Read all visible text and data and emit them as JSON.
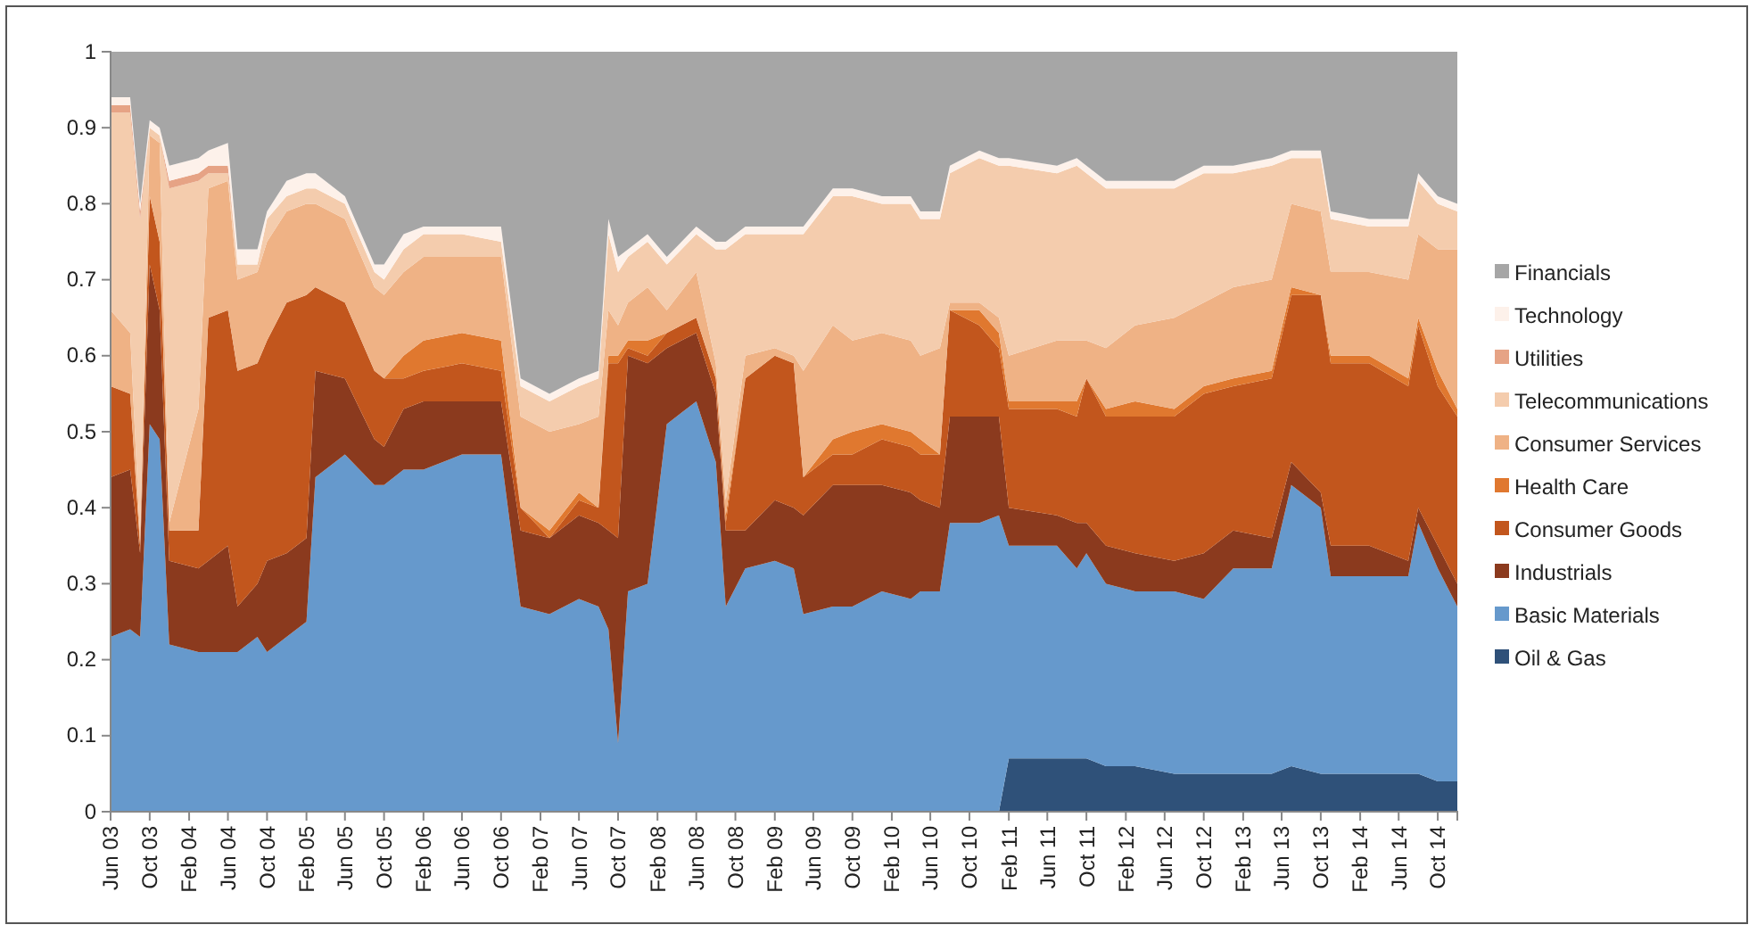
{
  "chart_data": {
    "type": "area",
    "stacked": true,
    "legend": "right",
    "grid": false,
    "x": [
      "2003-06",
      "2003-08",
      "2003-09",
      "2003-10",
      "2003-11",
      "2003-12",
      "2004-03",
      "2004-04",
      "2004-06",
      "2004-07",
      "2004-09",
      "2004-10",
      "2004-12",
      "2005-02",
      "2005-03",
      "2005-06",
      "2005-09",
      "2005-10",
      "2005-12",
      "2006-02",
      "2006-06",
      "2006-10",
      "2006-12",
      "2007-03",
      "2007-06",
      "2007-08",
      "2007-09",
      "2007-10",
      "2007-11",
      "2008-01",
      "2008-03",
      "2008-06",
      "2008-08",
      "2008-09",
      "2008-11",
      "2009-02",
      "2009-04",
      "2009-05",
      "2009-08",
      "2009-10",
      "2010-01",
      "2010-04",
      "2010-05",
      "2010-07",
      "2010-08",
      "2010-11",
      "2011-01",
      "2011-02",
      "2011-07",
      "2011-09",
      "2011-10",
      "2011-12",
      "2012-03",
      "2012-07",
      "2012-10",
      "2013-01",
      "2013-05",
      "2013-07",
      "2013-10",
      "2013-11",
      "2014-03",
      "2014-07",
      "2014-08",
      "2014-10",
      "2014-12"
    ],
    "xlim": [
      "2003-06",
      "2014-12"
    ],
    "xticks": [
      {
        "value": "2003-06",
        "label": "Jun 03"
      },
      {
        "value": "2003-10",
        "label": "Oct 03"
      },
      {
        "value": "2004-02",
        "label": "Feb 04"
      },
      {
        "value": "2004-06",
        "label": "Jun 04"
      },
      {
        "value": "2004-10",
        "label": "Oct 04"
      },
      {
        "value": "2005-02",
        "label": "Feb 05"
      },
      {
        "value": "2005-06",
        "label": "Jun 05"
      },
      {
        "value": "2005-10",
        "label": "Oct 05"
      },
      {
        "value": "2006-02",
        "label": "Feb 06"
      },
      {
        "value": "2006-06",
        "label": "Jun 06"
      },
      {
        "value": "2006-10",
        "label": "Oct 06"
      },
      {
        "value": "2007-02",
        "label": "Feb 07"
      },
      {
        "value": "2007-06",
        "label": "Jun 07"
      },
      {
        "value": "2007-10",
        "label": "Oct 07"
      },
      {
        "value": "2008-02",
        "label": "Feb 08"
      },
      {
        "value": "2008-06",
        "label": "Jun 08"
      },
      {
        "value": "2008-10",
        "label": "Oct 08"
      },
      {
        "value": "2009-02",
        "label": "Feb 09"
      },
      {
        "value": "2009-06",
        "label": "Jun 09"
      },
      {
        "value": "2009-10",
        "label": "Oct 09"
      },
      {
        "value": "2010-02",
        "label": "Feb 10"
      },
      {
        "value": "2010-06",
        "label": "Jun 10"
      },
      {
        "value": "2010-10",
        "label": "Oct 10"
      },
      {
        "value": "2011-02",
        "label": "Feb 11"
      },
      {
        "value": "2011-06",
        "label": "Jun 11"
      },
      {
        "value": "2011-10",
        "label": "Oct 11"
      },
      {
        "value": "2012-02",
        "label": "Feb 12"
      },
      {
        "value": "2012-06",
        "label": "Jun 12"
      },
      {
        "value": "2012-10",
        "label": "Oct 12"
      },
      {
        "value": "2013-02",
        "label": "Feb 13"
      },
      {
        "value": "2013-06",
        "label": "Jun 13"
      },
      {
        "value": "2013-10",
        "label": "Oct 13"
      },
      {
        "value": "2014-02",
        "label": "Feb 14"
      },
      {
        "value": "2014-06",
        "label": "Jun 14"
      },
      {
        "value": "2014-10",
        "label": "Oct 14"
      }
    ],
    "ylim": [
      0,
      1
    ],
    "yticks": [
      0,
      0.1,
      0.2,
      0.3,
      0.4,
      0.5,
      0.6,
      0.7,
      0.8,
      0.9,
      1
    ],
    "series": [
      {
        "name": "Oil & Gas",
        "color": "#2f5179",
        "values": [
          0,
          0,
          0,
          0,
          0,
          0,
          0,
          0,
          0,
          0,
          0,
          0,
          0,
          0,
          0,
          0,
          0,
          0,
          0,
          0,
          0,
          0,
          0,
          0,
          0,
          0,
          0,
          0,
          0,
          0,
          0,
          0,
          0,
          0,
          0,
          0,
          0,
          0,
          0,
          0,
          0,
          0,
          0,
          0,
          0,
          0,
          0,
          0.07,
          0.07,
          0.07,
          0.07,
          0.06,
          0.06,
          0.05,
          0.05,
          0.05,
          0.05,
          0.06,
          0.05,
          0.05,
          0.05,
          0.05,
          0.05,
          0.04,
          0.04
        ]
      },
      {
        "name": "Basic Materials",
        "color": "#6699cc",
        "values": [
          0.23,
          0.24,
          0.23,
          0.51,
          0.49,
          0.22,
          0.21,
          0.21,
          0.21,
          0.21,
          0.23,
          0.21,
          0.23,
          0.25,
          0.44,
          0.47,
          0.43,
          0.43,
          0.45,
          0.45,
          0.47,
          0.47,
          0.27,
          0.26,
          0.28,
          0.27,
          0.24,
          0.09,
          0.29,
          0.3,
          0.51,
          0.54,
          0.46,
          0.27,
          0.32,
          0.33,
          0.32,
          0.26,
          0.27,
          0.27,
          0.29,
          0.28,
          0.29,
          0.29,
          0.38,
          0.38,
          0.39,
          0.28,
          0.28,
          0.25,
          0.27,
          0.24,
          0.23,
          0.24,
          0.23,
          0.27,
          0.27,
          0.37,
          0.35,
          0.26,
          0.26,
          0.26,
          0.33,
          0.28,
          0.23
        ]
      },
      {
        "name": "Industrials",
        "color": "#8b3a1e",
        "values": [
          0.21,
          0.21,
          0.11,
          0.21,
          0.17,
          0.11,
          0.11,
          0.12,
          0.14,
          0.06,
          0.07,
          0.12,
          0.11,
          0.11,
          0.14,
          0.1,
          0.06,
          0.05,
          0.08,
          0.09,
          0.07,
          0.07,
          0.1,
          0.1,
          0.11,
          0.11,
          0.13,
          0.27,
          0.31,
          0.29,
          0.1,
          0.09,
          0.09,
          0.1,
          0.05,
          0.08,
          0.08,
          0.13,
          0.16,
          0.16,
          0.14,
          0.14,
          0.12,
          0.11,
          0.14,
          0.14,
          0.13,
          0.05,
          0.04,
          0.06,
          0.04,
          0.05,
          0.05,
          0.04,
          0.06,
          0.05,
          0.04,
          0.03,
          0.02,
          0.04,
          0.04,
          0.02,
          0.02,
          0.03,
          0.03
        ]
      },
      {
        "name": "Consumer Goods",
        "color": "#c2561d",
        "values": [
          0.12,
          0.1,
          0.01,
          0.09,
          0.09,
          0.04,
          0.05,
          0.32,
          0.31,
          0.31,
          0.29,
          0.29,
          0.33,
          0.32,
          0.11,
          0.1,
          0.09,
          0.09,
          0.04,
          0.04,
          0.05,
          0.04,
          0.03,
          0,
          0.02,
          0.02,
          0.22,
          0.23,
          0.01,
          0.01,
          0.02,
          0.02,
          0.02,
          0.01,
          0.2,
          0.19,
          0.19,
          0.05,
          0.04,
          0.04,
          0.06,
          0.06,
          0.06,
          0.07,
          0.14,
          0.12,
          0.09,
          0.13,
          0.14,
          0.14,
          0.19,
          0.17,
          0.18,
          0.19,
          0.21,
          0.19,
          0.21,
          0.22,
          0.26,
          0.24,
          0.24,
          0.23,
          0.24,
          0.21,
          0.22
        ]
      },
      {
        "name": "Health Care",
        "color": "#e0782f",
        "values": [
          0,
          0,
          0,
          0,
          0,
          0,
          0,
          0,
          0,
          0,
          0,
          0,
          0,
          0,
          0,
          0,
          0,
          0,
          0.03,
          0.04,
          0.04,
          0.04,
          0,
          0.01,
          0.01,
          0,
          0.01,
          0.01,
          0.01,
          0.02,
          0,
          0,
          0,
          0.01,
          0,
          0,
          0,
          0,
          0.02,
          0.03,
          0.02,
          0.02,
          0.02,
          0,
          0,
          0.02,
          0.02,
          0.01,
          0.01,
          0.02,
          0,
          0.01,
          0.02,
          0.01,
          0.01,
          0.01,
          0.01,
          0.01,
          0,
          0.01,
          0.01,
          0.01,
          0.01,
          0.02,
          0.01
        ]
      },
      {
        "name": "Consumer Services",
        "color": "#efb285",
        "values": [
          0.1,
          0.08,
          0.01,
          0.08,
          0.13,
          0.01,
          0.16,
          0.17,
          0.17,
          0.12,
          0.12,
          0.13,
          0.12,
          0.12,
          0.11,
          0.11,
          0.11,
          0.11,
          0.11,
          0.11,
          0.1,
          0.11,
          0.12,
          0.13,
          0.09,
          0.12,
          0.06,
          0.04,
          0.05,
          0.07,
          0.03,
          0.06,
          0.02,
          0.02,
          0.03,
          0.01,
          0.01,
          0.14,
          0.15,
          0.12,
          0.12,
          0.12,
          0.11,
          0.14,
          0.01,
          0.01,
          0.02,
          0.06,
          0.08,
          0.08,
          0.05,
          0.08,
          0.1,
          0.12,
          0.11,
          0.12,
          0.12,
          0.11,
          0.11,
          0.11,
          0.11,
          0.13,
          0.11,
          0.16,
          0.21
        ]
      },
      {
        "name": "Telecommunications",
        "color": "#f4ccad",
        "values": [
          0.26,
          0.29,
          0.42,
          0.01,
          0.01,
          0.44,
          0.3,
          0.02,
          0.01,
          0.02,
          0.01,
          0.03,
          0.02,
          0.02,
          0.02,
          0.02,
          0.02,
          0.02,
          0.03,
          0.03,
          0.03,
          0.02,
          0.04,
          0.04,
          0.05,
          0.05,
          0.1,
          0.07,
          0.06,
          0.06,
          0.06,
          0.05,
          0.15,
          0.33,
          0.16,
          0.15,
          0.16,
          0.18,
          0.17,
          0.19,
          0.17,
          0.18,
          0.18,
          0.17,
          0.17,
          0.19,
          0.2,
          0.25,
          0.22,
          0.23,
          0.22,
          0.21,
          0.18,
          0.17,
          0.17,
          0.15,
          0.15,
          0.06,
          0.07,
          0.07,
          0.06,
          0.07,
          0.07,
          0.06,
          0.05
        ]
      },
      {
        "name": "Utilities",
        "color": "#e6a385",
        "values": [
          0.01,
          0.01,
          0.01,
          0,
          0,
          0.01,
          0.01,
          0.01,
          0.01,
          0,
          0,
          0,
          0,
          0,
          0,
          0,
          0,
          0,
          0,
          0,
          0,
          0,
          0,
          0,
          0,
          0,
          0,
          0,
          0,
          0,
          0,
          0,
          0,
          0,
          0,
          0,
          0,
          0,
          0,
          0,
          0,
          0,
          0,
          0,
          0,
          0,
          0,
          0,
          0,
          0,
          0,
          0,
          0,
          0,
          0,
          0,
          0,
          0,
          0,
          0,
          0,
          0,
          0,
          0,
          0
        ]
      },
      {
        "name": "Technology",
        "color": "#fdf1ea",
        "values": [
          0.01,
          0.01,
          0.01,
          0.01,
          0.01,
          0.02,
          0.02,
          0.02,
          0.03,
          0.02,
          0.02,
          0.01,
          0.02,
          0.02,
          0.02,
          0.01,
          0.01,
          0.02,
          0.02,
          0.01,
          0.01,
          0.02,
          0.01,
          0.01,
          0.01,
          0.01,
          0.02,
          0.02,
          0.01,
          0.01,
          0.01,
          0.01,
          0.01,
          0.01,
          0.01,
          0.01,
          0.01,
          0.01,
          0.01,
          0.01,
          0.01,
          0.01,
          0.01,
          0.01,
          0.01,
          0.01,
          0.01,
          0.01,
          0.01,
          0.01,
          0.01,
          0.01,
          0.01,
          0.01,
          0.01,
          0.01,
          0.01,
          0.01,
          0.01,
          0.01,
          0.01,
          0.01,
          0.01,
          0.01,
          0.01
        ]
      },
      {
        "name": "Financials",
        "color": "#a6a6a6",
        "values": [
          0.06,
          0.06,
          0.2,
          0.09,
          0.1,
          0.15,
          0.14,
          0.13,
          0.12,
          0.26,
          0.26,
          0.21,
          0.17,
          0.16,
          0.16,
          0.19,
          0.28,
          0.28,
          0.24,
          0.23,
          0.23,
          0.23,
          0.43,
          0.45,
          0.43,
          0.42,
          0.22,
          0.27,
          0.26,
          0.24,
          0.27,
          0.23,
          0.25,
          0.25,
          0.23,
          0.23,
          0.23,
          0.23,
          0.18,
          0.18,
          0.19,
          0.19,
          0.21,
          0.21,
          0.15,
          0.13,
          0.14,
          0.14,
          0.15,
          0.14,
          0.15,
          0.17,
          0.17,
          0.17,
          0.15,
          0.15,
          0.14,
          0.13,
          0.13,
          0.21,
          0.22,
          0.22,
          0.16,
          0.19,
          0.2
        ]
      }
    ]
  }
}
